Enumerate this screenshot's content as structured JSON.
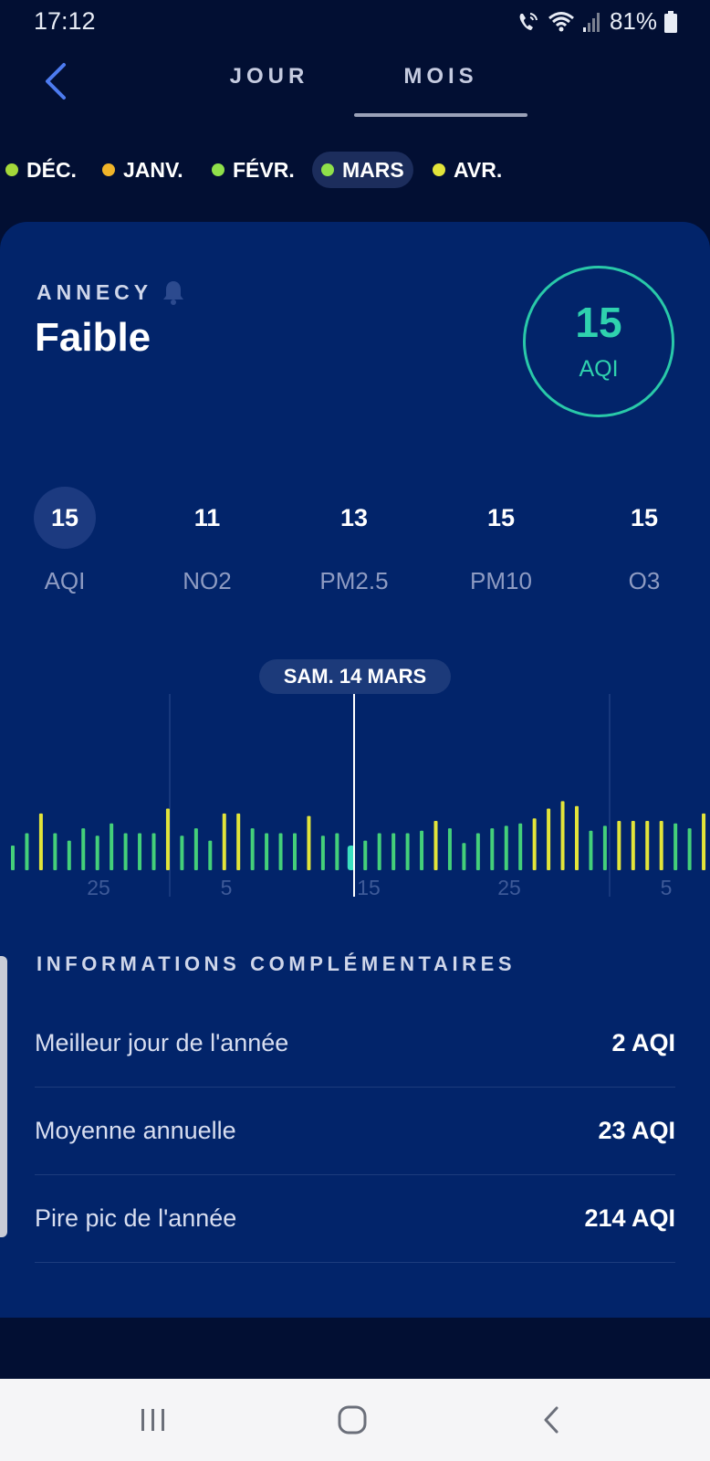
{
  "status_bar": {
    "time": "17:12",
    "battery": "81%"
  },
  "nav": {
    "tab_day": "JOUR",
    "tab_month": "MOIS"
  },
  "months": [
    {
      "label": "DÉC.",
      "color": "#a4d83a"
    },
    {
      "label": "JANV.",
      "color": "#f0b429"
    },
    {
      "label": "FÉVR.",
      "color": "#8fe04a"
    },
    {
      "label": "MARS",
      "color": "#8fe04a"
    },
    {
      "label": "AVR.",
      "color": "#e2e43a"
    }
  ],
  "location": {
    "city": "ANNECY",
    "status": "Faible"
  },
  "aqi": {
    "value": "15",
    "unit": "AQI",
    "color": "#2fd2ae"
  },
  "pollutants": [
    {
      "value": "15",
      "label": "AQI"
    },
    {
      "value": "11",
      "label": "NO2"
    },
    {
      "value": "13",
      "label": "PM2.5"
    },
    {
      "value": "15",
      "label": "PM10"
    },
    {
      "value": "15",
      "label": "O3"
    }
  ],
  "chart_data": {
    "type": "bar",
    "selected_date": "SAM. 14 MARS",
    "x_tick_labels": [
      "25",
      "5",
      "15",
      "25",
      "5"
    ],
    "values": [
      10,
      15,
      23,
      15,
      12,
      17,
      14,
      19,
      15,
      15,
      15,
      25,
      14,
      17,
      12,
      23,
      23,
      17,
      15,
      15,
      15,
      22,
      14,
      15,
      10,
      12,
      15,
      15,
      15,
      16,
      20,
      17,
      11,
      15,
      17,
      18,
      19,
      21,
      25,
      28,
      26,
      16,
      18,
      20,
      20,
      20,
      20,
      19,
      17,
      23,
      24,
      26
    ],
    "colors": {
      "good": "#44d07a",
      "moderate": "#e2e43a",
      "selected": "#3be0c0"
    }
  },
  "info": {
    "title": "INFORMATIONS COMPLÉMENTAIRES",
    "rows": [
      {
        "label": "Meilleur jour de l'année",
        "value": "2 AQI"
      },
      {
        "label": "Moyenne annuelle",
        "value": "23 AQI"
      },
      {
        "label": "Pire pic de l'année",
        "value": "214 AQI"
      }
    ]
  }
}
